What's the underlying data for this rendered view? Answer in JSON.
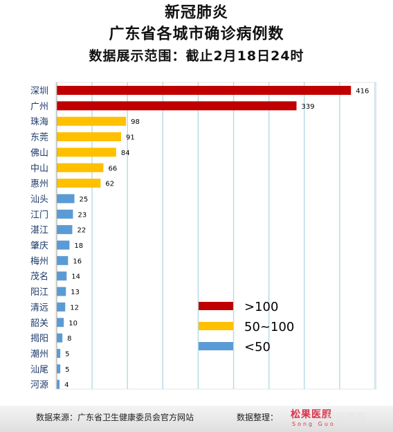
{
  "header": {
    "title": "新冠肺炎",
    "subtitle": "广东省各城市确诊病例数",
    "range": "数据展示范围：截止2月18日24时"
  },
  "chart_data": {
    "type": "bar",
    "orientation": "horizontal",
    "categories": [
      "深圳",
      "广州",
      "珠海",
      "东莞",
      "佛山",
      "中山",
      "惠州",
      "汕头",
      "江门",
      "湛江",
      "肇庆",
      "梅州",
      "茂名",
      "阳江",
      "清远",
      "韶关",
      "揭阳",
      "潮州",
      "汕尾",
      "河源"
    ],
    "values": [
      416,
      339,
      98,
      91,
      84,
      66,
      62,
      25,
      23,
      22,
      18,
      16,
      14,
      13,
      12,
      10,
      8,
      5,
      5,
      4
    ],
    "xlim": [
      0,
      450
    ],
    "grid": true,
    "legend_position": "bottom-right",
    "legend": [
      {
        "label": ">100",
        "color": "#c00000",
        "min": 100
      },
      {
        "label": "50~100",
        "color": "#ffc000",
        "min": 50
      },
      {
        "label": "<50",
        "color": "#5b9bd5",
        "min": 0
      }
    ]
  },
  "footer": {
    "source": "数据来源：广东省卫生健康委员会官方网站",
    "organizer": "数据整理：",
    "logo_text": "松果医服",
    "logo_sub": "Song Guo",
    "watermark": "松果医服"
  }
}
